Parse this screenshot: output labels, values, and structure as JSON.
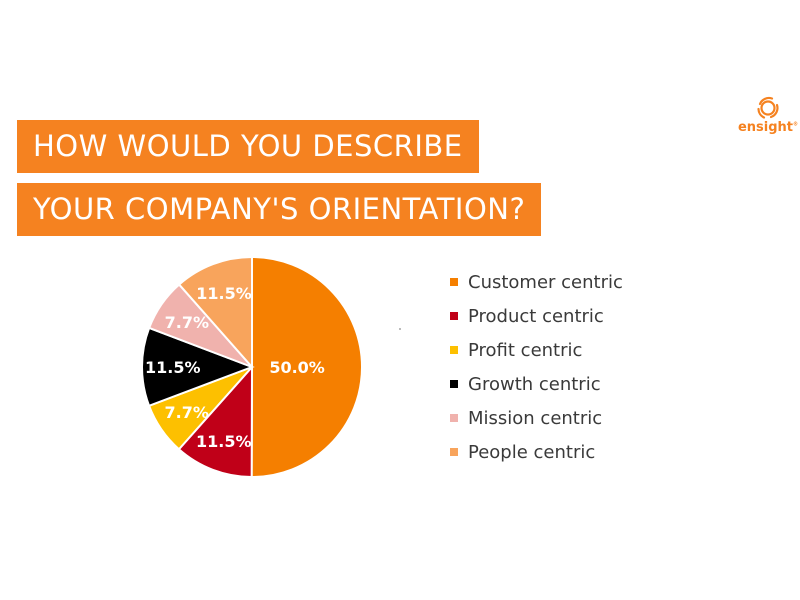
{
  "title": {
    "line1": "HOW WOULD YOU DESCRIBE",
    "line2": "YOUR COMPANY'S ORIENTATION?"
  },
  "logo": {
    "text": "ensight",
    "mark": "®"
  },
  "colors": {
    "accent": "#f58220"
  },
  "chart_data": {
    "type": "pie",
    "categories": [
      "Customer centric",
      "Product centric",
      "Profit centric",
      "Growth centric",
      "Mission centric",
      "People centric"
    ],
    "values": [
      50.0,
      11.5,
      7.7,
      11.5,
      7.7,
      11.5
    ],
    "labels": [
      "50.0%",
      "11.5%",
      "7.7%",
      "11.5%",
      "7.7%",
      "11.5%"
    ],
    "colors": [
      "#f57f00",
      "#c00018",
      "#fdc000",
      "#000000",
      "#f0b2ad",
      "#f8a45c"
    ],
    "label_colors": [
      "#ffffff",
      "#ffffff",
      "#ffffff",
      "#ffffff",
      "#ffffff",
      "#ffffff"
    ],
    "legend_position": "right",
    "start_angle_deg": 0,
    "direction": "clockwise"
  }
}
